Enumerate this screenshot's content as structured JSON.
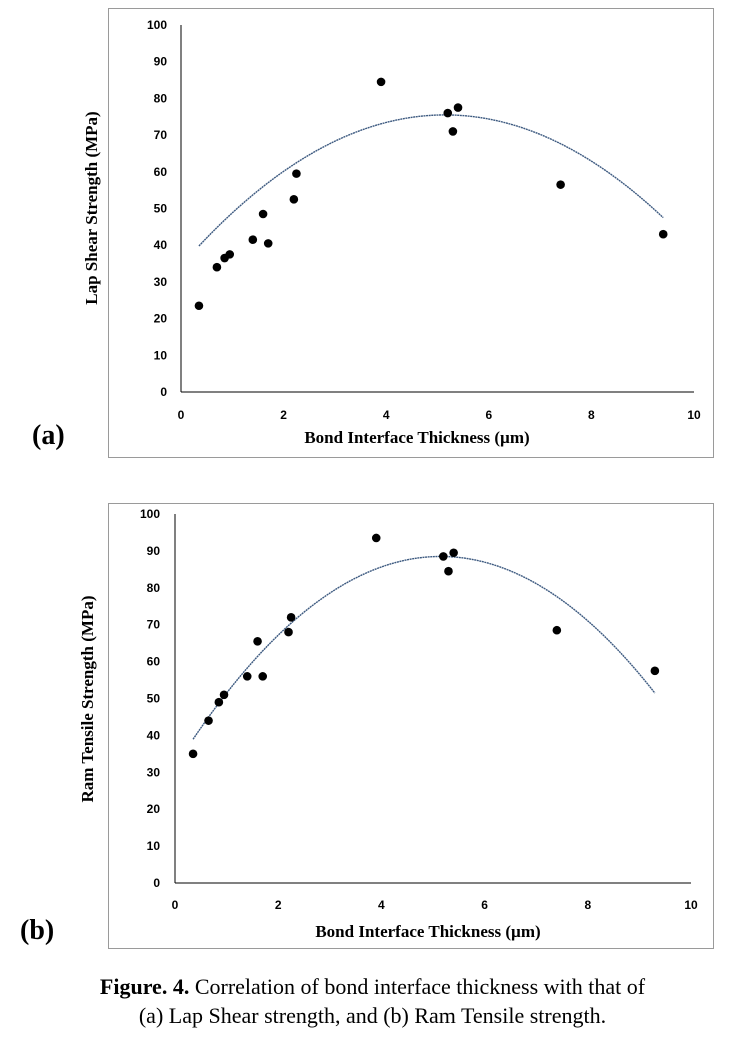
{
  "panels": {
    "a": {
      "label": "(a)"
    },
    "b": {
      "label": "(b)"
    }
  },
  "caption": {
    "prefix": "Figure. 4.",
    "text": " Correlation of bond interface thickness with that of",
    "line2": "(a) Lap Shear strength, and (b) Ram Tensile strength."
  },
  "chart_data": [
    {
      "type": "scatter",
      "panel": "a",
      "xlabel": "Bond Interface Thickness (µm)",
      "ylabel": "Lap Shear Strength (MPa)",
      "xlim": [
        0,
        10
      ],
      "ylim": [
        0,
        100
      ],
      "xticks": [
        0,
        2,
        4,
        6,
        8,
        10
      ],
      "yticks": [
        0,
        10,
        20,
        30,
        40,
        50,
        60,
        70,
        80,
        90,
        100
      ],
      "grid": false,
      "points": [
        {
          "x": 0.35,
          "y": 23.5
        },
        {
          "x": 0.7,
          "y": 34
        },
        {
          "x": 0.85,
          "y": 36.5
        },
        {
          "x": 0.95,
          "y": 37.5
        },
        {
          "x": 1.4,
          "y": 41.5
        },
        {
          "x": 1.6,
          "y": 48.5
        },
        {
          "x": 1.7,
          "y": 40.5
        },
        {
          "x": 2.2,
          "y": 52.5
        },
        {
          "x": 2.25,
          "y": 59.5
        },
        {
          "x": 3.9,
          "y": 84.5
        },
        {
          "x": 5.2,
          "y": 76
        },
        {
          "x": 5.3,
          "y": 71
        },
        {
          "x": 5.4,
          "y": 77.5
        },
        {
          "x": 7.4,
          "y": 56.5
        },
        {
          "x": 9.4,
          "y": 43
        }
      ],
      "trendline": {
        "type": "quadratic",
        "x_range": [
          0.35,
          9.4
        ],
        "vertex_x": 5.15,
        "vertex_y": 75.5,
        "a": -1.55
      }
    },
    {
      "type": "scatter",
      "panel": "b",
      "xlabel": "Bond Interface Thickness (µm)",
      "ylabel": "Ram Tensile Strength (MPa)",
      "xlim": [
        0,
        10
      ],
      "ylim": [
        0,
        100
      ],
      "xticks": [
        0,
        2,
        4,
        6,
        8,
        10
      ],
      "yticks": [
        0,
        10,
        20,
        30,
        40,
        50,
        60,
        70,
        80,
        90,
        100
      ],
      "grid": false,
      "points": [
        {
          "x": 0.35,
          "y": 35
        },
        {
          "x": 0.65,
          "y": 44
        },
        {
          "x": 0.85,
          "y": 49
        },
        {
          "x": 0.95,
          "y": 51
        },
        {
          "x": 1.4,
          "y": 56
        },
        {
          "x": 1.6,
          "y": 65.5
        },
        {
          "x": 1.7,
          "y": 56
        },
        {
          "x": 2.2,
          "y": 68
        },
        {
          "x": 2.25,
          "y": 72
        },
        {
          "x": 3.9,
          "y": 93.5
        },
        {
          "x": 5.2,
          "y": 88.5
        },
        {
          "x": 5.3,
          "y": 84.5
        },
        {
          "x": 5.4,
          "y": 89.5
        },
        {
          "x": 7.4,
          "y": 68.5
        },
        {
          "x": 9.3,
          "y": 57.5
        }
      ],
      "trendline": {
        "type": "quadratic",
        "x_range": [
          0.35,
          9.3
        ],
        "vertex_x": 5.15,
        "vertex_y": 88.5,
        "a": -2.15
      }
    }
  ]
}
